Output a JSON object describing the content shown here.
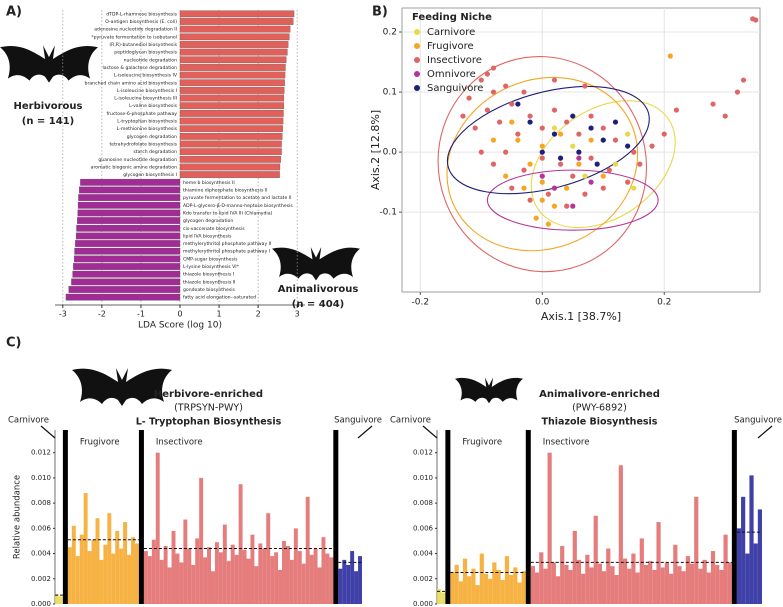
{
  "chart_data": [
    {
      "type": "bar",
      "orientation": "horizontal",
      "panel": "A)",
      "xlabel": "LDA Score (log 10)",
      "xlim": [
        -3.2,
        3.2
      ],
      "xticks": [
        -3,
        -2,
        -1,
        0,
        1,
        2,
        3
      ],
      "grid": true,
      "groups": [
        {
          "label": "Herbivorous",
          "n_label": "(n = 141)",
          "color": "#e2605a",
          "categories": [
            "dTDP-L-rhamnose biosynthesis",
            "O-antigen biosynthesis (E. coli)",
            "adenosine nucleotide degradation II",
            "*pyruvate fermentation to isobutanol",
            "(R,R)-butanediol biosynthesis",
            "peptidoglycan biosynthesis",
            "nucleotide degradation",
            "lactose & galactose degradation",
            "L-isoleucine biosynthesis IV",
            "branched chain amino acid biosynthesis",
            "L-isoleucine biosynthesis I",
            "L-isoleucine biosynthesis III",
            "L-valine biosynthesis",
            "fructose-6-phosphate pathway",
            "L-tryptophan biosynthesis",
            "L-methionine biosynthesis",
            "glycogen degradation",
            "tetrahydrofolate biosynthesis",
            "starch degradation",
            "guanosine nucleotide degradation",
            "aromatic biogenic amine degradation",
            "glycogen biosynthesis I"
          ],
          "values": [
            2.92,
            2.9,
            2.82,
            2.8,
            2.77,
            2.75,
            2.72,
            2.7,
            2.69,
            2.68,
            2.67,
            2.66,
            2.66,
            2.65,
            2.64,
            2.63,
            2.62,
            2.6,
            2.6,
            2.58,
            2.56,
            2.55
          ]
        },
        {
          "label": "Animalivorous",
          "n_label": "(n = 404)",
          "color": "#a22c96",
          "categories": [
            "heme b biosynthesis II",
            "thiamine diphosphate biosynthesis II",
            "pyruvate fermentation to acetate and lactate II",
            "ADP-L-glycero-β-D-manno-heptose biosynthesis",
            "Kdo transfer to lipid IVA III (Chlamydia)",
            "glycogen degradation",
            "cis-vaccenate biosynthesis",
            "lipid IVA biosynthesis",
            "methylerythritol phosphate pathway II",
            "methylerythritol phosphate pathway I",
            "CMP-sugar biosynthesis",
            "L-lysine biosynthesis VI*",
            "thiazole biosynthesis I",
            "thiazole biosynthesis II",
            "gondoate biosynthesis",
            "fatty acid elongation--saturated"
          ],
          "values": [
            -2.55,
            -2.58,
            -2.6,
            -2.61,
            -2.62,
            -2.63,
            -2.65,
            -2.66,
            -2.68,
            -2.7,
            -2.71,
            -2.73,
            -2.75,
            -2.78,
            -2.85,
            -2.92
          ]
        }
      ]
    },
    {
      "type": "scatter",
      "panel": "B)",
      "xlabel": "Axis.1   [38.7%]",
      "ylabel": "Axis.2   [12.8%]",
      "legend_title": "Feeding Niche",
      "legend": "top-left",
      "grid": true,
      "xlim": [
        -0.23,
        0.357
      ],
      "ylim": [
        -0.233,
        0.24
      ],
      "xticks": [
        -0.2,
        {
          "value": 0,
          "label": "0.0"
        },
        0.2
      ],
      "yticks": [
        -0.1,
        {
          "value": 0,
          "label": "0.0"
        },
        0.1,
        0.2
      ],
      "series": [
        {
          "name": "Carnivore",
          "color": "#e8d84c",
          "ellipse": [
            0.1,
            -0.02,
            0.13,
            0.09,
            -35
          ],
          "x": [
            0.05,
            0.12,
            0.1,
            0.14,
            0.07,
            0.15,
            0.02
          ],
          "y": [
            0.01,
            -0.02,
            0.02,
            0.03,
            -0.04,
            -0.06,
            0.04
          ]
        },
        {
          "name": "Frugivore",
          "color": "#f5a623",
          "ellipse": [
            0.0,
            -0.02,
            0.16,
            0.14,
            -25
          ],
          "x": [
            -0.04,
            -0.02,
            0.0,
            -0.06,
            -0.03,
            0.0,
            0.02,
            -0.01,
            0.01,
            0.04,
            0.06,
            0.03,
            -0.08,
            0.08,
            0.21,
            -0.05,
            0.1,
            0.0
          ],
          "y": [
            0.02,
            -0.02,
            0.01,
            -0.04,
            -0.06,
            -0.05,
            -0.09,
            -0.11,
            -0.12,
            -0.06,
            -0.02,
            0.03,
            0.02,
            0.02,
            0.16,
            0.05,
            -0.04,
            -0.08
          ]
        },
        {
          "name": "Insectivore",
          "color": "#e06666",
          "ellipse": [
            0.0,
            -0.02,
            0.17,
            0.18,
            -20
          ],
          "x": [
            -0.1,
            -0.08,
            -0.06,
            -0.12,
            -0.09,
            -0.05,
            -0.03,
            -0.07,
            -0.11,
            -0.04,
            -0.02,
            0.0,
            0.02,
            0.04,
            0.06,
            0.08,
            0.1,
            0.12,
            0.15,
            0.18,
            -0.1,
            -0.08,
            -0.06,
            -0.03,
            0.0,
            0.03,
            0.05,
            0.08,
            0.11,
            0.14,
            -0.05,
            -0.02,
            0.01,
            0.04,
            0.07,
            0.1,
            -0.08,
            -0.13,
            0.02,
            0.07,
            0.22,
            0.3,
            0.32,
            0.33,
            0.35,
            0.345,
            0.28,
            0.2,
            -0.09,
            0.16
          ],
          "y": [
            0.12,
            0.14,
            0.11,
            0.09,
            0.07,
            0.08,
            0.1,
            0.05,
            0.04,
            0.03,
            0.06,
            0.04,
            0.07,
            0.05,
            0.03,
            0.06,
            0.04,
            0.02,
            0.0,
            0.01,
            0.0,
            -0.02,
            0.0,
            -0.03,
            -0.01,
            -0.02,
            -0.04,
            -0.01,
            -0.03,
            -0.05,
            -0.06,
            -0.08,
            -0.07,
            -0.09,
            -0.07,
            -0.06,
            0.1,
            0.06,
            0.12,
            0.11,
            0.07,
            0.06,
            0.1,
            0.12,
            0.22,
            0.222,
            0.08,
            0.03,
            0.13,
            -0.02
          ]
        },
        {
          "name": "Omnivore",
          "color": "#b5339b",
          "ellipse": [
            0.05,
            -0.08,
            0.14,
            0.05,
            0
          ],
          "x": [
            0.02,
            0.05,
            0.08,
            0.0,
            0.06
          ],
          "y": [
            -0.06,
            -0.09,
            -0.05,
            -0.04,
            -0.01
          ]
        },
        {
          "name": "Sanguivore",
          "color": "#1f1f7a",
          "ellipse": [
            0.01,
            0.02,
            0.17,
            0.08,
            -15
          ],
          "x": [
            -0.02,
            0.02,
            0.05,
            0.08,
            0.1,
            0.0,
            0.03,
            0.06,
            0.12,
            -0.04,
            0.09,
            0.14
          ],
          "y": [
            0.05,
            0.03,
            0.06,
            0.04,
            0.02,
            0.0,
            -0.01,
            0.0,
            0.05,
            0.08,
            -0.02,
            0.01
          ]
        }
      ]
    },
    {
      "type": "bar",
      "orientation": "vertical",
      "panel": "C)",
      "title": "Herbivore-enriched",
      "pathway_id": "(TRPSYN-PWY)",
      "pathway": "L- Tryptophan Biosynthesis",
      "ylabel": "Relative abundance",
      "ylim": [
        0,
        0.0138
      ],
      "yticks": [
        {
          "value": 0,
          "label": "0.000"
        },
        {
          "value": 0.002,
          "label": "0.002"
        },
        {
          "value": 0.004,
          "label": "0.004"
        },
        {
          "value": 0.006,
          "label": "0.006"
        },
        {
          "value": 0.008,
          "label": "0.008"
        },
        {
          "value": 0.01,
          "label": "0.010"
        },
        {
          "value": 0.012,
          "label": "0.012"
        }
      ],
      "groups": [
        {
          "name": "Carnivore",
          "color": "#e8d84c",
          "mean": 0.0007,
          "values": [
            0.0008,
            0.0006
          ]
        },
        {
          "name": "Frugivore",
          "color": "#f5a623",
          "mean": 0.0051,
          "values": [
            0.0045,
            0.0062,
            0.0038,
            0.0055,
            0.0088,
            0.0042,
            0.0051,
            0.0068,
            0.0035,
            0.0047,
            0.0072,
            0.004,
            0.0058,
            0.0044,
            0.0065,
            0.0039,
            0.0053,
            0.0048
          ]
        },
        {
          "name": "Insectivore",
          "color": "#e06666",
          "mean": 0.0044,
          "values": [
            0.0042,
            0.0038,
            0.0051,
            0.012,
            0.0035,
            0.0046,
            0.0029,
            0.0058,
            0.004,
            0.0033,
            0.0067,
            0.0044,
            0.0031,
            0.0052,
            0.01,
            0.0037,
            0.0045,
            0.0026,
            0.0049,
            0.0041,
            0.0063,
            0.0034,
            0.0047,
            0.0039,
            0.0095,
            0.0043,
            0.0036,
            0.0055,
            0.003,
            0.0048,
            0.0044,
            0.0072,
            0.0038,
            0.0041,
            0.0027,
            0.005,
            0.0046,
            0.0035,
            0.006,
            0.0042,
            0.0032,
            0.0085,
            0.0039,
            0.0044,
            0.0029,
            0.0053,
            0.004,
            0.0037
          ]
        },
        {
          "name": "Sanguivore",
          "color": "#1f1f9a",
          "mean": 0.0033,
          "values": [
            0.0028,
            0.0035,
            0.0031,
            0.0042,
            0.0026,
            0.0038
          ]
        }
      ]
    },
    {
      "type": "bar",
      "orientation": "vertical",
      "title": "Animalivore-enriched",
      "pathway_id": "(PWY-6892)",
      "pathway": "Thiazole Biosynthesis",
      "ylim": [
        0,
        0.0138
      ],
      "yticks": [
        {
          "value": 0,
          "label": "0.000"
        },
        {
          "value": 0.002,
          "label": "0.002"
        },
        {
          "value": 0.004,
          "label": "0.004"
        },
        {
          "value": 0.006,
          "label": "0.006"
        },
        {
          "value": 0.008,
          "label": "0.008"
        },
        {
          "value": 0.01,
          "label": "0.010"
        },
        {
          "value": 0.012,
          "label": "0.012"
        }
      ],
      "groups": [
        {
          "name": "Carnivore",
          "color": "#e8d84c",
          "mean": 0.001,
          "values": [
            0.0012,
            0.0009
          ]
        },
        {
          "name": "Frugivore",
          "color": "#f5a623",
          "mean": 0.0025,
          "values": [
            0.0025,
            0.0031,
            0.0018,
            0.0036,
            0.0022,
            0.0028,
            0.0015,
            0.004,
            0.0024,
            0.002,
            0.0033,
            0.0027,
            0.0019,
            0.0038,
            0.0023,
            0.0029,
            0.0017,
            0.0026
          ]
        },
        {
          "name": "Insectivore",
          "color": "#e06666",
          "mean": 0.0033,
          "values": [
            0.003,
            0.0025,
            0.0041,
            0.0028,
            0.012,
            0.0033,
            0.0022,
            0.0046,
            0.0031,
            0.0027,
            0.0058,
            0.0035,
            0.0024,
            0.0039,
            0.0029,
            0.007,
            0.0032,
            0.0026,
            0.0044,
            0.003,
            0.0023,
            0.011,
            0.0036,
            0.0028,
            0.004,
            0.0025,
            0.0052,
            0.0031,
            0.0034,
            0.0027,
            0.0065,
            0.0029,
            0.0033,
            0.0024,
            0.0047,
            0.003,
            0.0026,
            0.0038,
            0.0032,
            0.0085,
            0.0028,
            0.0035,
            0.0025,
            0.0042,
            0.0031,
            0.0027,
            0.0055,
            0.0033
          ]
        },
        {
          "name": "Sanguivore",
          "color": "#1f1f9a",
          "mean": 0.0057,
          "values": [
            0.006,
            0.0085,
            0.004,
            0.0102,
            0.0048,
            0.0075
          ]
        }
      ]
    }
  ]
}
